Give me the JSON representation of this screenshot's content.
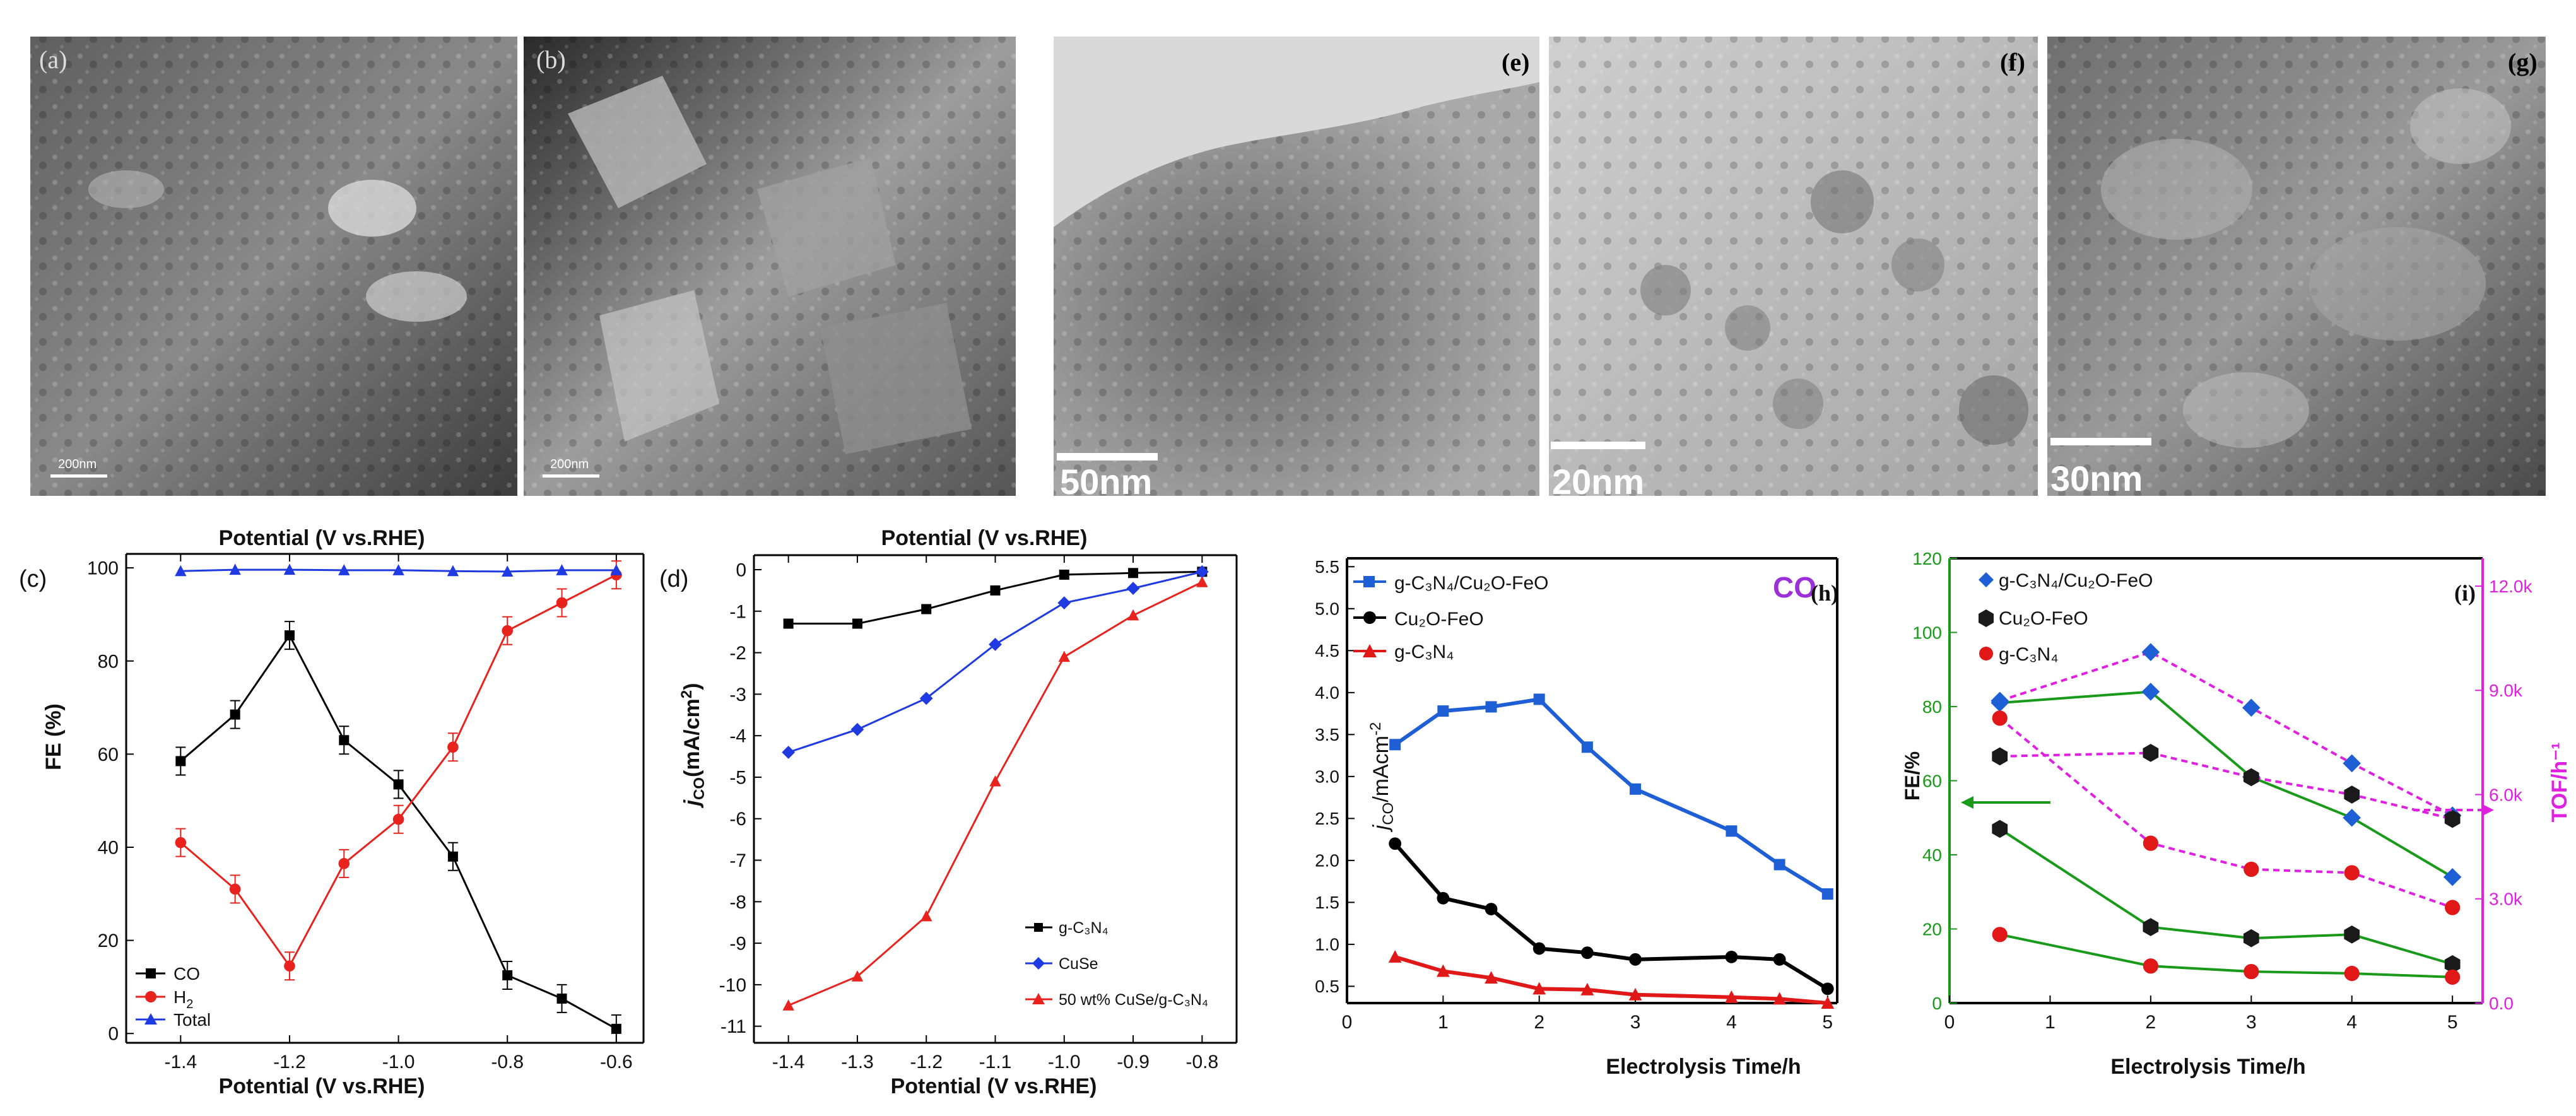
{
  "images": [
    {
      "letter": "(a)",
      "scale": "200nm"
    },
    {
      "letter": "(b)",
      "scale": "200nm"
    },
    {
      "letter": "(e)",
      "scale": "50nm"
    },
    {
      "letter": "(f)",
      "scale": "20nm"
    },
    {
      "letter": "(g)",
      "scale": "30nm"
    }
  ],
  "chart_data": [
    {
      "panel": "(c)",
      "type": "line",
      "title": "Potential (V vs.RHE)",
      "xlabel": "Potential (V vs.RHE)",
      "ylabel": "FE (%)",
      "xlim": [
        -1.5,
        -0.55
      ],
      "ylim": [
        -2,
        103
      ],
      "xticks": [
        -1.4,
        -1.2,
        -1.0,
        -0.8,
        -0.6
      ],
      "xticklabels": [
        "-1.4",
        "-1.2",
        "-1.0",
        "-0.8",
        "-0.6"
      ],
      "yticks": [
        0,
        20,
        40,
        60,
        80,
        100
      ],
      "yticklabels": [
        "0",
        "20",
        "40",
        "60",
        "80",
        "100"
      ],
      "legend_position": "bottom-left",
      "x": [
        -1.4,
        -1.3,
        -1.2,
        -1.1,
        -1.0,
        -0.9,
        -0.8,
        -0.7,
        -0.6
      ],
      "series": [
        {
          "name": "CO",
          "color": "#000000",
          "marker": "square",
          "values": [
            58.5,
            68.5,
            85.5,
            63,
            53.5,
            38,
            12.5,
            7.5,
            1
          ]
        },
        {
          "name": "H2",
          "label_main": "H",
          "label_sub": "2",
          "color": "#e8231d",
          "marker": "circle",
          "values": [
            41,
            31,
            14.5,
            36.5,
            46,
            61.5,
            86.5,
            92.5,
            98.5
          ]
        },
        {
          "name": "Total",
          "color": "#1f3ae0",
          "marker": "triangle",
          "values": [
            99.3,
            99.6,
            99.6,
            99.5,
            99.5,
            99.3,
            99.2,
            99.5,
            99.5
          ]
        }
      ]
    },
    {
      "panel": "(d)",
      "type": "line",
      "title": "Potential (V vs.RHE)",
      "xlabel": "Potential (V vs.RHE)",
      "ylabel_main": "j",
      "ylabel_sub": "CO",
      "ylabel_rest": "(mA/cm",
      "ylabel_sup": "2",
      "ylabel_end": ")",
      "xlim": [
        -1.45,
        -0.75
      ],
      "ylim": [
        -11.4,
        0.35
      ],
      "xticks": [
        -1.4,
        -1.3,
        -1.2,
        -1.1,
        -1.0,
        -0.9,
        -0.8
      ],
      "xticklabels": [
        "-1.4",
        "-1.3",
        "-1.2",
        "-1.1",
        "-1.0",
        "-0.9",
        "-0.8"
      ],
      "yticks": [
        0,
        -1,
        -2,
        -3,
        -4,
        -5,
        -6,
        -7,
        -8,
        -9,
        -10,
        -11
      ],
      "yticklabels": [
        "0",
        "-1",
        "-2",
        "-3",
        "-4",
        "-5",
        "-6",
        "-7",
        "-8",
        "-9",
        "-10",
        "-11"
      ],
      "legend_position": "bottom-right",
      "x": [
        -1.4,
        -1.3,
        -1.2,
        -1.1,
        -1.0,
        -0.9,
        -0.8
      ],
      "series": [
        {
          "name": "g-C3N4",
          "label": "g-C₃N₄",
          "color": "#000000",
          "marker": "square",
          "values": [
            -1.3,
            -1.3,
            -0.95,
            -0.5,
            -0.12,
            -0.08,
            -0.05
          ]
        },
        {
          "name": "CuSe",
          "label": "CuSe",
          "color": "#1f3ae0",
          "marker": "diamond",
          "values": [
            -4.4,
            -3.85,
            -3.1,
            -1.8,
            -0.8,
            -0.45,
            -0.05
          ]
        },
        {
          "name": "50 wt% CuSe/g-C3N4",
          "label": "50 wt% CuSe/g-C₃N₄",
          "color": "#e8231d",
          "marker": "triangle",
          "values": [
            -10.5,
            -9.8,
            -8.35,
            -5.1,
            -2.1,
            -1.1,
            -0.3
          ]
        }
      ]
    },
    {
      "panel": "(h)",
      "type": "line",
      "annotation": "CO",
      "xlabel": "Electrolysis Time/h",
      "ylabel_main": "j",
      "ylabel_sub": "CO",
      "ylabel_rest": "/mAcm",
      "ylabel_sup": "-2",
      "xlim": [
        0,
        5.1
      ],
      "ylim": [
        0.3,
        5.6
      ],
      "xticks": [
        0,
        1,
        2,
        3,
        4,
        5
      ],
      "xticklabels": [
        "0",
        "1",
        "2",
        "3",
        "4",
        "5"
      ],
      "yticks": [
        0.5,
        1.0,
        1.5,
        2.0,
        2.5,
        3.0,
        3.5,
        4.0,
        4.5,
        5.0,
        5.5
      ],
      "yticklabels": [
        "0.5",
        "1.0",
        "1.5",
        "2.0",
        "2.5",
        "3.0",
        "3.5",
        "4.0",
        "4.5",
        "5.0",
        "5.5"
      ],
      "legend_position": "top-left",
      "series": [
        {
          "name": "g-C3N4/Cu2O-FeO",
          "label": "g-C₃N₄/Cu₂O-FeO",
          "color": "#1f5fd6",
          "marker": "square",
          "x": [
            0.5,
            1,
            1.5,
            2,
            2.5,
            3,
            4,
            4.5,
            5
          ],
          "values": [
            3.38,
            3.78,
            3.83,
            3.92,
            3.35,
            2.85,
            2.35,
            1.95,
            1.6
          ]
        },
        {
          "name": "Cu2O-FeO",
          "label": "Cu₂O-FeO",
          "color": "#000000",
          "marker": "circle",
          "x": [
            0.5,
            1,
            1.5,
            2,
            2.5,
            3,
            4,
            4.5,
            5
          ],
          "values": [
            2.2,
            1.55,
            1.42,
            0.95,
            0.9,
            0.82,
            0.85,
            0.82,
            0.47
          ]
        },
        {
          "name": "g-C3N4",
          "label": "g-C₃N₄",
          "color": "#e01818",
          "marker": "triangle",
          "x": [
            0.5,
            1,
            1.5,
            2,
            2.5,
            3,
            4,
            4.5,
            5
          ],
          "values": [
            0.85,
            0.68,
            0.6,
            0.47,
            0.46,
            0.4,
            0.37,
            0.35,
            0.3
          ]
        }
      ]
    },
    {
      "panel": "(i)",
      "type": "line",
      "xlabel": "Electrolysis Time/h",
      "ylabel": "FE/%",
      "ylabel2": "TOF/h⁻¹",
      "xlim": [
        0,
        5.3
      ],
      "ylim": [
        0,
        120
      ],
      "y2lim": [
        0,
        12.8
      ],
      "xticks": [
        0,
        1,
        2,
        3,
        4,
        5
      ],
      "xticklabels": [
        "0",
        "1",
        "2",
        "3",
        "4",
        "5"
      ],
      "yticks": [
        0,
        20,
        40,
        60,
        80,
        100,
        120
      ],
      "yticklabels": [
        "0",
        "20",
        "40",
        "60",
        "80",
        "100",
        "120"
      ],
      "y2ticks": [
        0,
        3,
        6,
        9,
        12
      ],
      "y2ticklabels": [
        "0.0",
        "3.0k",
        "6.0k",
        "9.0k",
        "12.0k"
      ],
      "legend_position": "top-left",
      "axis_colors": {
        "left": "#1a9a1a",
        "right": "#e020e0"
      },
      "series": [
        {
          "name": "g-C3N4/Cu2O-FeO",
          "label": "g-C₃N₄/Cu₂O-FeO",
          "color": "#1f5fd6",
          "marker": "diamond",
          "x": [
            0.5,
            2,
            3,
            4,
            5
          ],
          "fe": [
            81,
            84,
            61,
            50,
            34
          ],
          "tof_k": [
            8.7,
            10.1,
            8.5,
            6.9,
            5.4
          ]
        },
        {
          "name": "Cu2O-FeO",
          "label": "Cu₂O-FeO",
          "color": "#1a1a1a",
          "marker": "hexagon",
          "x": [
            0.5,
            2,
            3,
            4,
            5
          ],
          "fe": [
            47,
            20.5,
            17.5,
            18.5,
            10.5
          ],
          "tof_k": [
            7.1,
            7.2,
            6.5,
            6.0,
            5.3
          ]
        },
        {
          "name": "g-C3N4",
          "label": "g-C₃N₄",
          "color": "#e01818",
          "marker": "circle",
          "x": [
            0.5,
            2,
            3,
            4,
            5
          ],
          "fe": [
            18.5,
            10,
            8.5,
            8,
            7
          ],
          "tof_k": [
            8.2,
            4.6,
            3.85,
            3.75,
            2.75
          ]
        }
      ]
    }
  ]
}
